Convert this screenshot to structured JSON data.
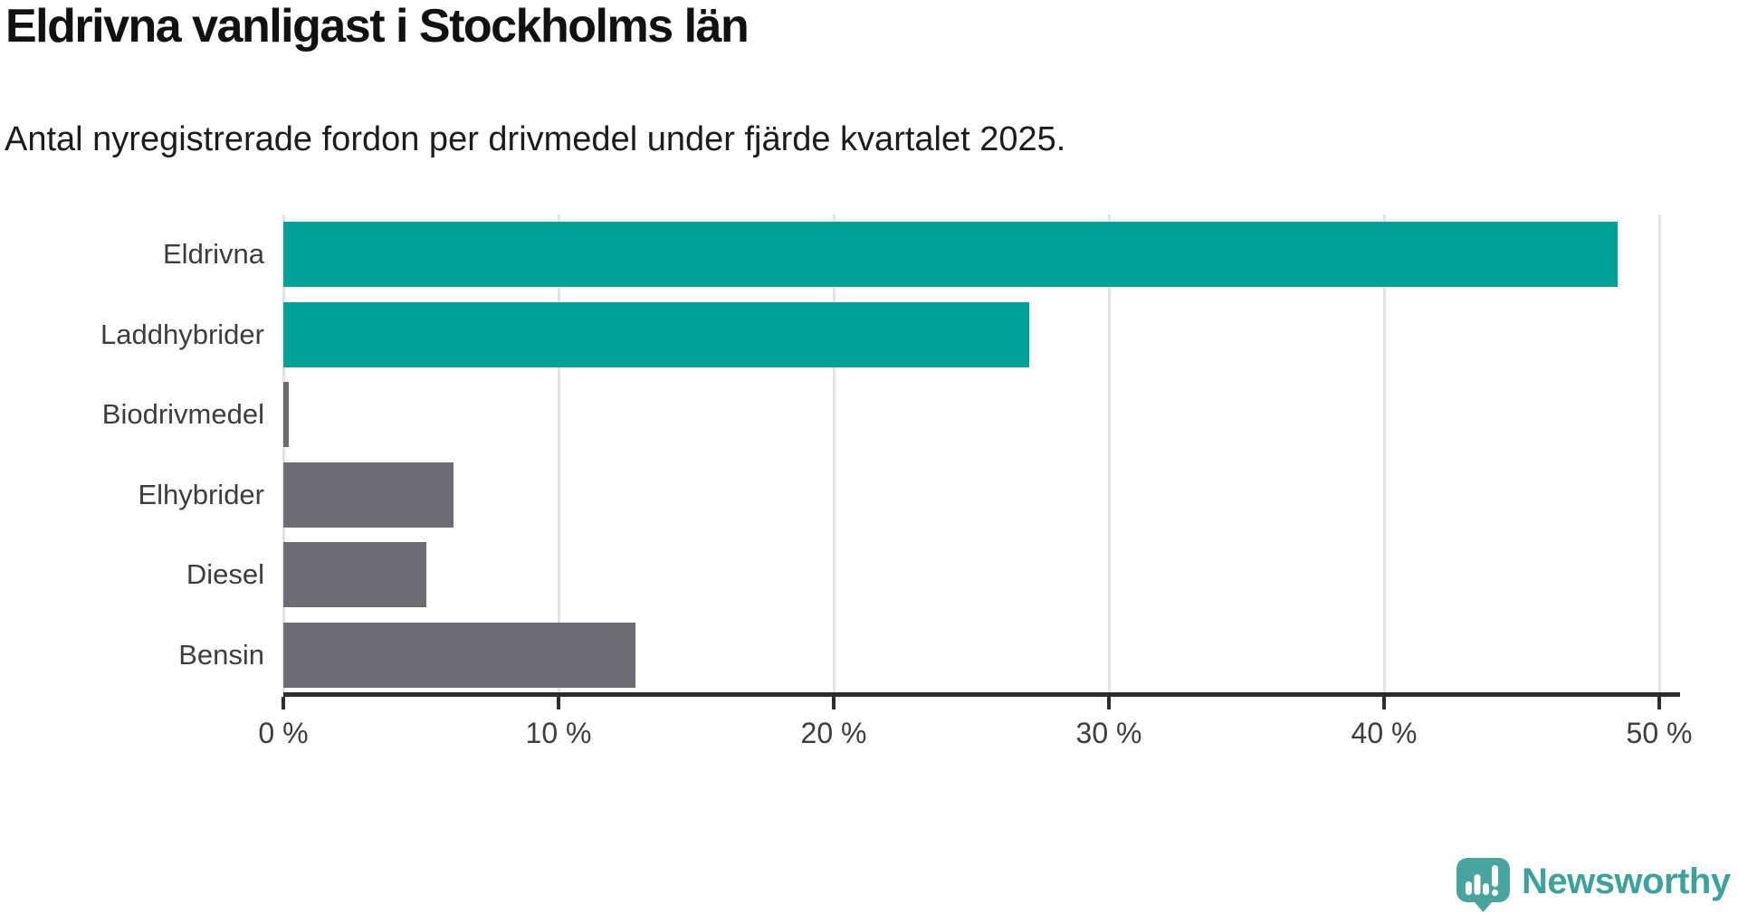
{
  "chart_data": {
    "type": "bar",
    "orientation": "horizontal",
    "title": "Eldrivna vanligast i Stockholms län",
    "subtitle": "Antal nyregistrerade fordon per drivmedel under fjärde kvartalet 2025.",
    "categories": [
      "Eldrivna",
      "Laddhybrider",
      "Biodrivmedel",
      "Elhybrider",
      "Diesel",
      "Bensin"
    ],
    "values": [
      48.5,
      27.1,
      0.2,
      6.2,
      5.2,
      12.8
    ],
    "unit": "%",
    "bar_colors": [
      "#00a096",
      "#00a096",
      "#6c6c72",
      "#6c6c72",
      "#6c6c72",
      "#6c6c72"
    ],
    "xlim": [
      0,
      50
    ],
    "x_ticks": [
      0,
      10,
      20,
      30,
      40,
      50
    ],
    "x_tick_labels": [
      "0 %",
      "10 %",
      "20 %",
      "30 %",
      "40 %",
      "50 %"
    ],
    "grid": "vertical-gridlines-on",
    "legend": "none"
  },
  "colors": {
    "accent_teal": "#00a096",
    "bar_gray": "#6c6c72",
    "gridline": "#e3e3e3",
    "axis": "#2d2d31",
    "title_text": "#111111",
    "label_text": "#3d3d3d"
  },
  "logo": {
    "text": "Newsworthy",
    "text_color": "#3fa19b",
    "icon_color": "#48a49d",
    "icon": "newsworthy-speech-bubble-bar-chart-icon"
  }
}
